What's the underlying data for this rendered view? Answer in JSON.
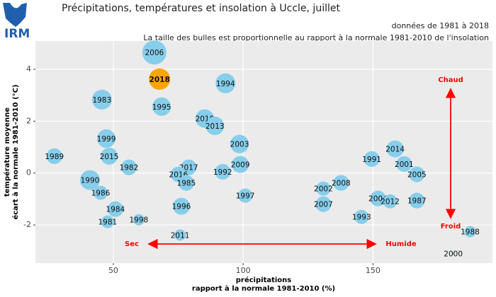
{
  "logo": "IRM",
  "chart_data": {
    "type": "bubble",
    "title": "Précipitations, températures et insolation à Uccle, juillet",
    "subtitle": "données de 1981 à 2018",
    "caption": "La taille des bulles est proportionnelle au rapport à la normale 1981-2010 de l'insolation",
    "x_label": [
      "précipitations",
      "rapport à la normale 1981-2010 (%)"
    ],
    "y_label": [
      "température moyenne",
      "écart à la normale 1981-2010 (°C)"
    ],
    "xlim": [
      20,
      196
    ],
    "ylim": [
      -3.47,
      5.09
    ],
    "xticks": [
      50,
      100,
      150
    ],
    "yticks": [
      -2,
      0,
      2,
      4
    ],
    "grid": true,
    "annotations": [
      "Chaud",
      "Froid",
      "Sec",
      "Humide"
    ],
    "series": [
      {
        "color": "#87ceeb",
        "label_color": "#111111",
        "labels": [
          "1989",
          "1990",
          "1986",
          "1983",
          "1999",
          "2015",
          "1984",
          "1981",
          "1982",
          "1998",
          "2006",
          "1995",
          "2017",
          "2016",
          "1985",
          "1996",
          "2011",
          "2010",
          "2013",
          "1994",
          "1992",
          "2003",
          "2009",
          "1997",
          "2002",
          "2007",
          "2008",
          "1993",
          "1991",
          "2014",
          "2001",
          "2005",
          "2004",
          "2012",
          "1987",
          "1988",
          "2000"
        ],
        "x": [
          27.3,
          41,
          45.1,
          45.6,
          47.3,
          48.4,
          50.8,
          47.8,
          56,
          59.8,
          65.8,
          68.6,
          79,
          75.1,
          78.1,
          76.2,
          75.7,
          85.2,
          89.1,
          93.2,
          92.1,
          98.6,
          98.9,
          100.8,
          130.9,
          130.9,
          137.7,
          145.6,
          149.5,
          158.5,
          162,
          166.9,
          151.9,
          156.6,
          166.9,
          187.4,
          180.9
        ],
        "y": [
          0.65,
          -0.27,
          -0.76,
          2.83,
          1.33,
          0.65,
          -1.39,
          -1.88,
          0.22,
          -1.8,
          4.65,
          2.56,
          0.22,
          -0.05,
          -0.38,
          -1.28,
          -2.39,
          2.1,
          1.82,
          3.46,
          0.05,
          1.12,
          0.33,
          -0.87,
          -0.6,
          -1.2,
          -0.38,
          -1.69,
          0.54,
          0.93,
          0.35,
          -0.05,
          -0.98,
          -1.09,
          -1.06,
          -2.26,
          -3.1
        ],
        "sizes": [
          94,
          119,
          85,
          119,
          111,
          102,
          94,
          77,
          94,
          68,
          145,
          111,
          94,
          94,
          94,
          102,
          68,
          111,
          111,
          119,
          94,
          111,
          102,
          85,
          85,
          94,
          94,
          85,
          94,
          102,
          94,
          94,
          94,
          85,
          94,
          68,
          17
        ]
      },
      {
        "color": "#ffa500",
        "label_color": "#ff0000",
        "labels": [
          "2018"
        ],
        "x": [
          67.8
        ],
        "y": [
          3.62
        ],
        "sizes": [
          128
        ]
      }
    ]
  }
}
